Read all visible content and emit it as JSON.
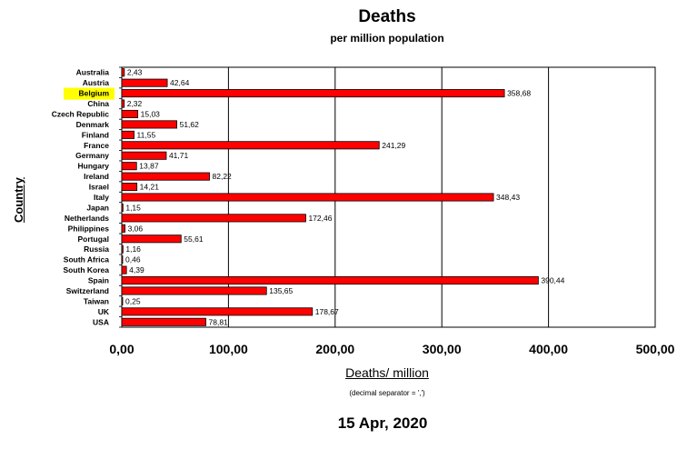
{
  "chart_data": {
    "type": "bar",
    "orientation": "horizontal",
    "title": "Deaths",
    "subtitle": "per million population",
    "xlabel": "Deaths/ million",
    "ylabel": "Country",
    "note": "(decimal separator = ',')",
    "date": "15 Apr, 2020",
    "xlim": [
      0,
      500
    ],
    "x_ticks": [
      "0,00",
      "100,00",
      "200,00",
      "300,00",
      "400,00",
      "500,00"
    ],
    "grid": true,
    "bar_color": "#ff0000",
    "highlight_color": "#ffff00",
    "highlighted": "Belgium",
    "categories": [
      "Australia",
      "Austria",
      "Belgium",
      "China",
      "Czech Republic",
      "Denmark",
      "Finland",
      "France",
      "Germany",
      "Hungary",
      "Ireland",
      "Israel",
      "Italy",
      "Japan",
      "Netherlands",
      "Philippines",
      "Portugal",
      "Russia",
      "South Africa",
      "South Korea",
      "Spain",
      "Switzerland",
      "Taiwan",
      "UK",
      "USA"
    ],
    "values": [
      2.43,
      42.64,
      358.68,
      2.32,
      15.03,
      51.62,
      11.55,
      241.29,
      41.71,
      13.87,
      82.22,
      14.21,
      348.43,
      1.15,
      172.46,
      3.06,
      55.61,
      1.16,
      0.46,
      4.39,
      390.44,
      135.65,
      0.25,
      178.67,
      78.81
    ],
    "value_labels": [
      "2,43",
      "42,64",
      "358,68",
      "2,32",
      "15,03",
      "51,62",
      "11,55",
      "241,29",
      "41,71",
      "13,87",
      "82,22",
      "14,21",
      "348,43",
      "1,15",
      "172,46",
      "3,06",
      "55,61",
      "1,16",
      "0,46",
      "4,39",
      "390,44",
      "135,65",
      "0,25",
      "178,67",
      "78,81"
    ]
  }
}
